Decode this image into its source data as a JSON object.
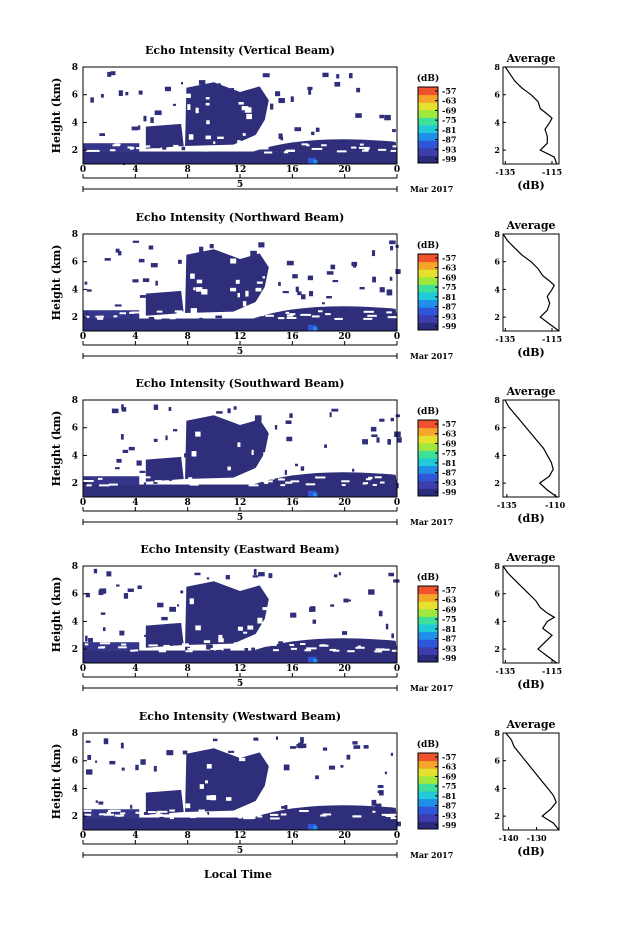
{
  "page": {
    "bottom_label": "Local Time",
    "date_label": "Mar 2017",
    "panel_titles": [
      "Echo Intensity (Vertical Beam)",
      "Echo Intensity (Northward Beam)",
      "Echo Intensity (Southward Beam)",
      "Echo Intensity (Eastward Beam)",
      "Echo Intensity (Westward Beam)"
    ]
  },
  "chart_data": [
    {
      "type": "heatmap",
      "title": "Echo Intensity (Vertical Beam)",
      "xlabel": "",
      "ylabel": "Height (km)",
      "x_ticks": [
        "0",
        "4",
        "8",
        "12",
        "16",
        "20",
        "0"
      ],
      "y_ticks": [
        "2",
        "4",
        "6",
        "8"
      ],
      "date_tick": "5",
      "date_label": "Mar 2017",
      "xlim": [
        0,
        24
      ],
      "ylim": [
        1,
        8
      ],
      "colorbar": {
        "unit": "(dB)",
        "ticks": [
          "-57",
          "-63",
          "-69",
          "-75",
          "-81",
          "-87",
          "-93",
          "-99"
        ],
        "range": [
          -99,
          -57
        ],
        "colors": [
          "#2b2b7e",
          "#3d3dad",
          "#2f56d8",
          "#1f8fe8",
          "#22c9d8",
          "#3fe09a",
          "#9fe83e",
          "#e6e02e",
          "#f5a52a",
          "#f0522d"
        ]
      },
      "profile": {
        "title": "Average",
        "xlabel": "(dB)",
        "x_ticks": [
          "-135",
          "-115"
        ],
        "xlim": [
          -136,
          -112
        ],
        "y_ticks": [
          "2",
          "4",
          "6",
          "8"
        ],
        "ylim": [
          1,
          8
        ],
        "height": [
          1.0,
          1.5,
          2.0,
          2.5,
          3.0,
          3.5,
          4.0,
          4.3,
          4.6,
          5.0,
          5.5,
          6.0,
          6.5,
          7.0,
          7.5,
          8.0
        ],
        "value": [
          -113,
          -114,
          -120,
          -117,
          -117,
          -118,
          -116,
          -115,
          -117,
          -120,
          -121,
          -124,
          -128,
          -131,
          -133,
          -135
        ]
      }
    },
    {
      "type": "heatmap",
      "title": "Echo Intensity (Northward Beam)",
      "xlabel": "",
      "ylabel": "Height (km)",
      "x_ticks": [
        "0",
        "4",
        "8",
        "12",
        "16",
        "20",
        "0"
      ],
      "y_ticks": [
        "2",
        "4",
        "6",
        "8"
      ],
      "date_tick": "5",
      "date_label": "Mar 2017",
      "xlim": [
        0,
        24
      ],
      "ylim": [
        1,
        8
      ],
      "colorbar": {
        "unit": "(dB)",
        "ticks": [
          "-57",
          "-63",
          "-69",
          "-75",
          "-81",
          "-87",
          "-93",
          "-99"
        ],
        "range": [
          -99,
          -57
        ],
        "colors": [
          "#2b2b7e",
          "#3d3dad",
          "#2f56d8",
          "#1f8fe8",
          "#22c9d8",
          "#3fe09a",
          "#9fe83e",
          "#e6e02e",
          "#f5a52a",
          "#f0522d"
        ]
      },
      "profile": {
        "title": "Average",
        "xlabel": "(dB)",
        "x_ticks": [
          "-135",
          "-115"
        ],
        "xlim": [
          -136,
          -112
        ],
        "y_ticks": [
          "2",
          "4",
          "6",
          "8"
        ],
        "ylim": [
          1,
          8
        ],
        "height": [
          1.0,
          1.5,
          2.0,
          2.5,
          3.0,
          3.5,
          4.0,
          4.3,
          4.6,
          5.0,
          5.5,
          6.0,
          6.5,
          7.0,
          7.5,
          8.0
        ],
        "value": [
          -112,
          -116,
          -120,
          -117,
          -116,
          -117,
          -115,
          -114,
          -116,
          -119,
          -121,
          -124,
          -128,
          -131,
          -134,
          -136
        ]
      }
    },
    {
      "type": "heatmap",
      "title": "Echo Intensity (Southward Beam)",
      "xlabel": "",
      "ylabel": "Height (km)",
      "x_ticks": [
        "0",
        "4",
        "8",
        "12",
        "16",
        "20",
        "0"
      ],
      "y_ticks": [
        "2",
        "4",
        "6",
        "8"
      ],
      "date_tick": "5",
      "date_label": "Mar 2017",
      "xlim": [
        0,
        24
      ],
      "ylim": [
        1,
        8
      ],
      "colorbar": {
        "unit": "(dB)",
        "ticks": [
          "-57",
          "-63",
          "-69",
          "-75",
          "-81",
          "-87",
          "-93",
          "-99"
        ],
        "range": [
          -99,
          -57
        ],
        "colors": [
          "#2b2b7e",
          "#3d3dad",
          "#2f56d8",
          "#1f8fe8",
          "#22c9d8",
          "#3fe09a",
          "#9fe83e",
          "#e6e02e",
          "#f5a52a",
          "#f0522d"
        ]
      },
      "profile": {
        "title": "Average",
        "xlabel": "(dB)",
        "x_ticks": [
          "-135",
          "-110"
        ],
        "xlim": [
          -137,
          -108
        ],
        "y_ticks": [
          "2",
          "4",
          "6",
          "8"
        ],
        "ylim": [
          1,
          8
        ],
        "height": [
          1.0,
          1.5,
          2.0,
          2.5,
          3.0,
          3.5,
          4.0,
          4.5,
          5.0,
          5.5,
          6.0,
          6.5,
          7.0,
          7.5,
          8.0
        ],
        "value": [
          -109,
          -114,
          -118,
          -113,
          -111,
          -112,
          -114,
          -116,
          -119,
          -122,
          -125,
          -128,
          -131,
          -134,
          -136
        ]
      }
    },
    {
      "type": "heatmap",
      "title": "Echo Intensity (Eastward Beam)",
      "xlabel": "",
      "ylabel": "Height (km)",
      "x_ticks": [
        "0",
        "4",
        "8",
        "12",
        "16",
        "20",
        "0"
      ],
      "y_ticks": [
        "2",
        "4",
        "6",
        "8"
      ],
      "date_tick": "5",
      "date_label": "Mar 2017",
      "xlim": [
        0,
        24
      ],
      "ylim": [
        1,
        8
      ],
      "colorbar": {
        "unit": "(dB)",
        "ticks": [
          "-57",
          "-63",
          "-69",
          "-75",
          "-81",
          "-87",
          "-93",
          "-99"
        ],
        "range": [
          -99,
          -57
        ],
        "colors": [
          "#2b2b7e",
          "#3d3dad",
          "#2f56d8",
          "#1f8fe8",
          "#22c9d8",
          "#3fe09a",
          "#9fe83e",
          "#e6e02e",
          "#f5a52a",
          "#f0522d"
        ]
      },
      "profile": {
        "title": "Average",
        "xlabel": "(dB)",
        "x_ticks": [
          "-135",
          "-115"
        ],
        "xlim": [
          -136,
          -112
        ],
        "y_ticks": [
          "2",
          "4",
          "6",
          "8"
        ],
        "ylim": [
          1,
          8
        ],
        "height": [
          1.0,
          1.5,
          2.0,
          2.5,
          3.0,
          3.5,
          4.0,
          4.3,
          4.6,
          5.0,
          5.5,
          6.0,
          6.5,
          7.0,
          7.5,
          8.0
        ],
        "value": [
          -113,
          -117,
          -121,
          -118,
          -115,
          -119,
          -117,
          -114,
          -117,
          -120,
          -122,
          -125,
          -128,
          -131,
          -134,
          -136
        ]
      }
    },
    {
      "type": "heatmap",
      "title": "Echo Intensity (Westward Beam)",
      "xlabel": "Local Time",
      "ylabel": "Height (km)",
      "x_ticks": [
        "0",
        "4",
        "8",
        "12",
        "16",
        "20",
        "0"
      ],
      "y_ticks": [
        "2",
        "4",
        "6",
        "8"
      ],
      "date_tick": "5",
      "date_label": "Mar 2017",
      "xlim": [
        0,
        24
      ],
      "ylim": [
        1,
        8
      ],
      "colorbar": {
        "unit": "(dB)",
        "ticks": [
          "-57",
          "-63",
          "-69",
          "-75",
          "-81",
          "-87",
          "-93",
          "-99"
        ],
        "range": [
          -99,
          -57
        ],
        "colors": [
          "#2b2b7e",
          "#3d3dad",
          "#2f56d8",
          "#1f8fe8",
          "#22c9d8",
          "#3fe09a",
          "#9fe83e",
          "#e6e02e",
          "#f5a52a",
          "#f0522d"
        ]
      },
      "profile": {
        "title": "Average",
        "xlabel": "(dB)",
        "x_ticks": [
          "-140",
          "-130"
        ],
        "xlim": [
          -142,
          -122
        ],
        "y_ticks": [
          "2",
          "4",
          "6",
          "8"
        ],
        "ylim": [
          1,
          8
        ],
        "height": [
          1.0,
          1.5,
          2.0,
          2.5,
          3.0,
          3.5,
          4.0,
          4.5,
          5.0,
          5.5,
          6.0,
          6.5,
          7.0,
          7.5,
          8.0
        ],
        "value": [
          -122,
          -124,
          -128,
          -125,
          -123,
          -124,
          -126,
          -128,
          -130,
          -132,
          -134,
          -136,
          -138,
          -139,
          -141
        ]
      }
    }
  ]
}
